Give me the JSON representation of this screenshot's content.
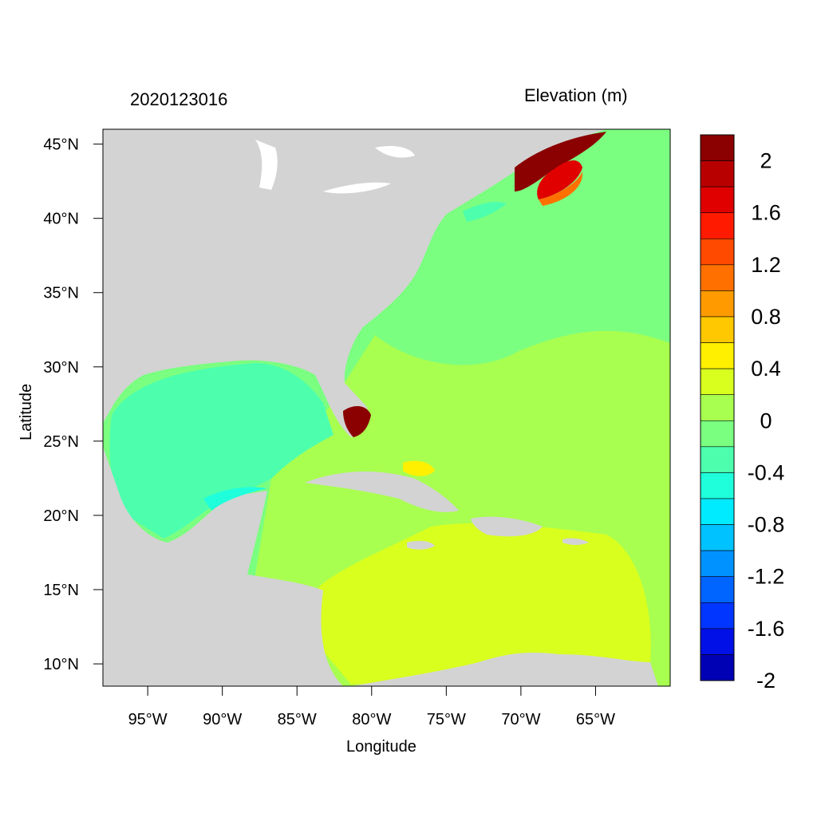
{
  "map": {
    "date_label": "2020123016",
    "variable_label": "Elevation (m)",
    "xlabel": "Longitude",
    "ylabel": "Latitude",
    "x_ticks": [
      "95°W",
      "90°W",
      "85°W",
      "80°W",
      "75°W",
      "70°W",
      "65°W"
    ],
    "y_ticks": [
      "45°N",
      "40°N",
      "35°N",
      "30°N",
      "25°N",
      "20°N",
      "15°N",
      "10°N"
    ],
    "extent": {
      "lon": [
        -98,
        -60
      ],
      "lat": [
        8.5,
        46
      ]
    },
    "land_color": "#d3d3d3"
  },
  "colorbar": {
    "labels": [
      "2",
      "1.6",
      "1.2",
      "0.8",
      "0.4",
      "0",
      "-0.4",
      "-0.8",
      "-1.2",
      "-1.6",
      "-2"
    ],
    "colors": [
      "#8b0000",
      "#b80000",
      "#e00000",
      "#ff1a00",
      "#ff4a00",
      "#ff7000",
      "#ff9b00",
      "#ffc800",
      "#fff000",
      "#d9ff1f",
      "#a8ff50",
      "#7bff80",
      "#4dffad",
      "#1fffdc",
      "#00ebff",
      "#00c2ff",
      "#0093ff",
      "#0064ff",
      "#0036ff",
      "#0010e6",
      "#0000b4"
    ]
  }
}
